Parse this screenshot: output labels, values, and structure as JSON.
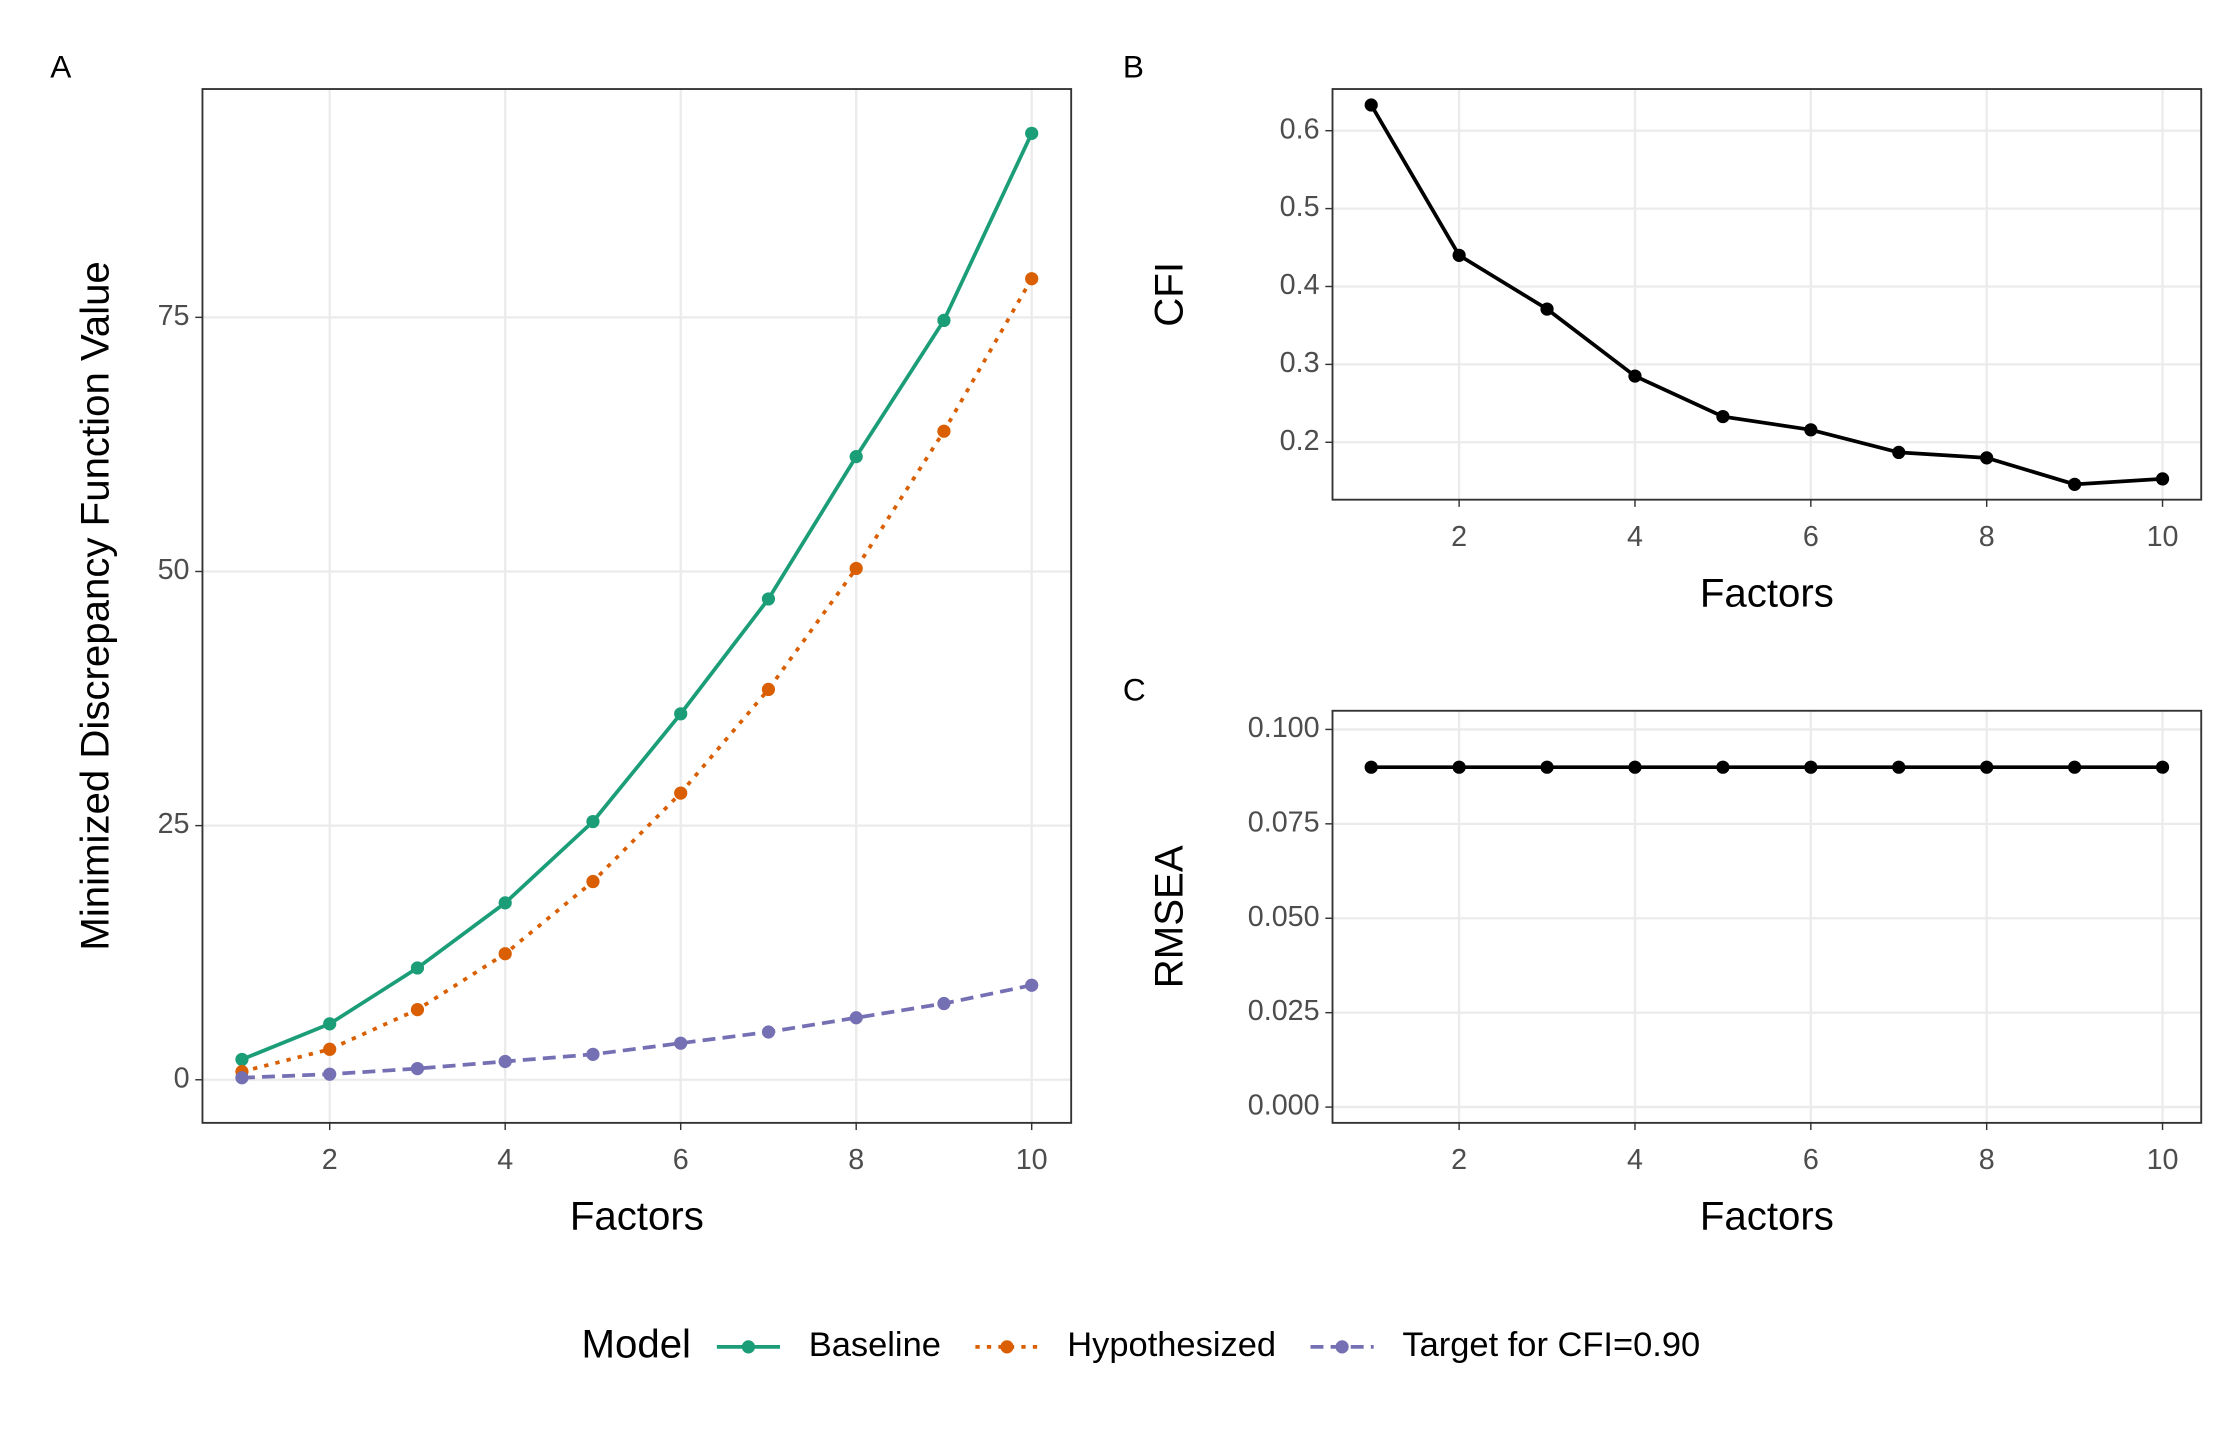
{
  "chart_data": [
    {
      "type": "line",
      "tag": "A",
      "x_label": "Factors",
      "y_label": "Minimized Discrepancy Function Value",
      "x": [
        1,
        2,
        3,
        4,
        5,
        6,
        7,
        8,
        9,
        10
      ],
      "xlim": [
        0.55,
        10.45
      ],
      "xticks": [
        2,
        4,
        6,
        8,
        10
      ],
      "ylim": [
        -4.24,
        97.46
      ],
      "yticks": [
        0,
        25,
        50,
        75
      ],
      "grid": true,
      "legend_title": "Model",
      "legend": "bottom",
      "series": [
        {
          "name": "Baseline",
          "color": "#1b9e77",
          "linestyle": "solid",
          "values": [
            2.0,
            5.5,
            11.0,
            17.4,
            25.4,
            36.0,
            47.3,
            61.3,
            74.7,
            93.1
          ]
        },
        {
          "name": "Hypothesized",
          "color": "#d95f02",
          "linestyle": "dotted",
          "values": [
            0.8,
            3.0,
            6.9,
            12.4,
            19.5,
            28.2,
            38.4,
            50.3,
            63.8,
            78.8
          ]
        },
        {
          "name": "Target for CFI=0.90",
          "color": "#7570b3",
          "linestyle": "dashed",
          "values": [
            0.2,
            0.55,
            1.1,
            1.8,
            2.5,
            3.6,
            4.7,
            6.1,
            7.5,
            9.3
          ]
        }
      ]
    },
    {
      "type": "line",
      "tag": "B",
      "x_label": "Factors",
      "y_label": "CFI",
      "x": [
        1,
        2,
        3,
        4,
        5,
        6,
        7,
        8,
        9,
        10
      ],
      "xlim": [
        0.56,
        10.44
      ],
      "xticks": [
        2,
        4,
        6,
        8,
        10
      ],
      "ylim": [
        0.1263,
        0.6535
      ],
      "yticks": [
        0.2,
        0.3,
        0.4,
        0.5,
        0.6
      ],
      "grid": true,
      "series": [
        {
          "color": "#000000",
          "linestyle": "solid",
          "values": [
            0.633,
            0.44,
            0.371,
            0.285,
            0.233,
            0.216,
            0.187,
            0.18,
            0.146,
            0.153
          ]
        }
      ]
    },
    {
      "type": "line",
      "tag": "C",
      "x_label": "Factors",
      "y_label": "RMSEA",
      "x": [
        1,
        2,
        3,
        4,
        5,
        6,
        7,
        8,
        9,
        10
      ],
      "xlim": [
        0.56,
        10.44
      ],
      "xticks": [
        2,
        4,
        6,
        8,
        10
      ],
      "ylim": [
        -0.00418,
        0.10494
      ],
      "yticks": [
        {
          "value": 0,
          "label": "0.000"
        },
        {
          "value": 0.025,
          "label": "0.025"
        },
        {
          "value": 0.05,
          "label": "0.050"
        },
        {
          "value": 0.075,
          "label": "0.075"
        },
        {
          "value": 0.1,
          "label": "0.100"
        }
      ],
      "grid": true,
      "series": [
        {
          "color": "#000000",
          "linestyle": "solid",
          "values": [
            0.09,
            0.09,
            0.09,
            0.09,
            0.09,
            0.09,
            0.09,
            0.09,
            0.09,
            0.09
          ]
        }
      ]
    }
  ]
}
